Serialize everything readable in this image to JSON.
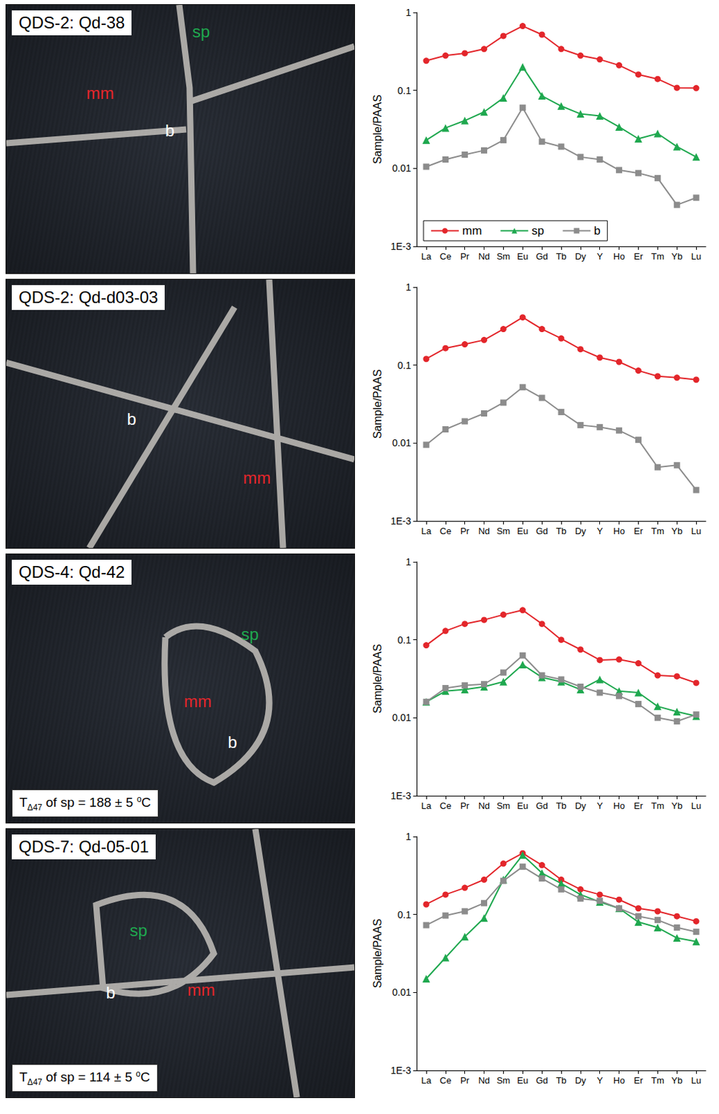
{
  "photos": [
    {
      "title": "QDS-2: Qd-38",
      "labels": [
        {
          "text": "mm",
          "color": "#e3262b"
        },
        {
          "text": "sp",
          "color": "#1fa84f"
        },
        {
          "text": "b",
          "color": "#ffffff"
        }
      ]
    },
    {
      "title": "QDS-2: Qd-d03-03",
      "labels": [
        {
          "text": "b",
          "color": "#ffffff"
        },
        {
          "text": "mm",
          "color": "#e3262b"
        }
      ]
    },
    {
      "title": "QDS-4: Qd-42",
      "labels": [
        {
          "text": "sp",
          "color": "#1fa84f"
        },
        {
          "text": "mm",
          "color": "#e3262b"
        },
        {
          "text": "b",
          "color": "#ffffff"
        }
      ],
      "note": {
        "symbol": "T",
        "subscript": "Δ47",
        "text": " of sp = 188 ± 5 ",
        "superscript": "o",
        "unit": "C"
      }
    },
    {
      "title": "QDS-7: Qd-05-01",
      "labels": [
        {
          "text": "sp",
          "color": "#1fa84f"
        },
        {
          "text": "b",
          "color": "#ffffff"
        },
        {
          "text": "mm",
          "color": "#e3262b"
        }
      ],
      "note": {
        "symbol": "T",
        "subscript": "Δ47",
        "text": " of sp = 114 ± 5 ",
        "superscript": "o",
        "unit": "C"
      }
    }
  ],
  "chart_data": [
    {
      "type": "line",
      "ylabel": "Sample/PAAS",
      "log": "y",
      "legend": "lower left",
      "categories": [
        "La",
        "Ce",
        "Pr",
        "Nd",
        "Sm",
        "Eu",
        "Gd",
        "Tb",
        "Dy",
        "Y",
        "Ho",
        "Er",
        "Tm",
        "Yb",
        "Lu"
      ],
      "ylim": [
        0.001,
        1
      ],
      "yticks": [
        {
          "value": 0.001,
          "label": "1E-3"
        },
        0.01,
        0.1,
        1
      ],
      "series": [
        {
          "name": "mm",
          "color": "#e3262b",
          "marker": "circle",
          "values": [
            0.24,
            0.28,
            0.3,
            0.34,
            0.5,
            0.67,
            0.52,
            0.34,
            0.28,
            0.25,
            0.21,
            0.16,
            0.14,
            0.108,
            0.107
          ]
        },
        {
          "name": "sp",
          "color": "#1fa84f",
          "marker": "triangle",
          "values": [
            0.023,
            0.033,
            0.041,
            0.053,
            0.08,
            0.2,
            0.085,
            0.063,
            0.05,
            0.047,
            0.034,
            0.024,
            0.028,
            0.019,
            0.014
          ]
        },
        {
          "name": "b",
          "color": "#8c8c8c",
          "marker": "square",
          "values": [
            0.0105,
            0.013,
            0.015,
            0.017,
            0.023,
            0.06,
            0.022,
            0.019,
            0.014,
            0.013,
            0.0095,
            0.0087,
            0.0075,
            0.0034,
            0.0042
          ]
        }
      ]
    },
    {
      "type": "line",
      "ylabel": "Sample/PAAS",
      "log": "y",
      "categories": [
        "La",
        "Ce",
        "Pr",
        "Nd",
        "Sm",
        "Eu",
        "Gd",
        "Tb",
        "Dy",
        "Y",
        "Ho",
        "Er",
        "Tm",
        "Yb",
        "Lu"
      ],
      "ylim": [
        0.001,
        1
      ],
      "yticks": [
        {
          "value": 0.001,
          "label": "1E-3"
        },
        0.01,
        0.1,
        1
      ],
      "series": [
        {
          "name": "mm",
          "color": "#e3262b",
          "marker": "circle",
          "values": [
            0.12,
            0.165,
            0.185,
            0.21,
            0.29,
            0.41,
            0.29,
            0.22,
            0.16,
            0.125,
            0.11,
            0.085,
            0.072,
            0.069,
            0.065
          ]
        },
        {
          "name": "b",
          "color": "#8c8c8c",
          "marker": "square",
          "values": [
            0.0095,
            0.015,
            0.019,
            0.024,
            0.033,
            0.052,
            0.038,
            0.025,
            0.017,
            0.016,
            0.0145,
            0.011,
            0.0049,
            0.0052,
            0.0025
          ]
        }
      ]
    },
    {
      "type": "line",
      "ylabel": "Sample/PAAS",
      "log": "y",
      "categories": [
        "La",
        "Ce",
        "Pr",
        "Nd",
        "Sm",
        "Eu",
        "Gd",
        "Tb",
        "Dy",
        "Y",
        "Ho",
        "Er",
        "Tm",
        "Yb",
        "Lu"
      ],
      "ylim": [
        0.001,
        1
      ],
      "yticks": [
        {
          "value": 0.001,
          "label": "1E-3"
        },
        0.01,
        0.1,
        1
      ],
      "series": [
        {
          "name": "mm",
          "color": "#e3262b",
          "marker": "circle",
          "values": [
            0.085,
            0.13,
            0.16,
            0.18,
            0.21,
            0.24,
            0.16,
            0.1,
            0.075,
            0.055,
            0.056,
            0.05,
            0.035,
            0.034,
            0.028
          ]
        },
        {
          "name": "sp",
          "color": "#1fa84f",
          "marker": "triangle",
          "values": [
            0.016,
            0.022,
            0.023,
            0.025,
            0.029,
            0.048,
            0.033,
            0.029,
            0.023,
            0.031,
            0.022,
            0.021,
            0.014,
            0.012,
            0.0105
          ]
        },
        {
          "name": "b",
          "color": "#8c8c8c",
          "marker": "square",
          "values": [
            0.016,
            0.024,
            0.026,
            0.027,
            0.038,
            0.063,
            0.035,
            0.031,
            0.025,
            0.021,
            0.019,
            0.015,
            0.01,
            0.009,
            0.011
          ]
        }
      ]
    },
    {
      "type": "line",
      "ylabel": "Sample/PAAS",
      "log": "y",
      "categories": [
        "La",
        "Ce",
        "Pr",
        "Nd",
        "Sm",
        "Eu",
        "Gd",
        "Tb",
        "Dy",
        "Y",
        "Ho",
        "Er",
        "Tm",
        "Yb",
        "Lu"
      ],
      "ylim": [
        0.001,
        1
      ],
      "yticks": [
        {
          "value": 0.001,
          "label": "1E-3"
        },
        0.01,
        0.1,
        1
      ],
      "series": [
        {
          "name": "mm",
          "color": "#e3262b",
          "marker": "circle",
          "values": [
            0.135,
            0.18,
            0.22,
            0.28,
            0.45,
            0.61,
            0.43,
            0.28,
            0.21,
            0.18,
            0.155,
            0.12,
            0.11,
            0.095,
            0.082
          ]
        },
        {
          "name": "sp",
          "color": "#1fa84f",
          "marker": "triangle",
          "values": [
            0.015,
            0.028,
            0.052,
            0.09,
            0.28,
            0.58,
            0.34,
            0.25,
            0.18,
            0.145,
            0.12,
            0.08,
            0.068,
            0.05,
            0.045
          ]
        },
        {
          "name": "b",
          "color": "#8c8c8c",
          "marker": "square",
          "values": [
            0.073,
            0.097,
            0.11,
            0.14,
            0.27,
            0.41,
            0.29,
            0.21,
            0.16,
            0.15,
            0.12,
            0.095,
            0.085,
            0.068,
            0.06
          ]
        }
      ]
    }
  ]
}
